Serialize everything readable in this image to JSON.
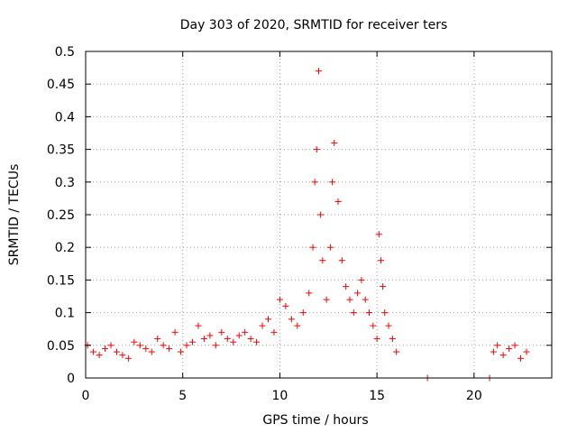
{
  "chart_data": {
    "type": "scatter",
    "title": "Day 303 of 2020, SRMTID for receiver ters",
    "xlabel": "GPS time / hours",
    "ylabel": "SRMTID / TECUs",
    "xlim": [
      0,
      24
    ],
    "ylim": [
      0,
      0.5
    ],
    "xticks": [
      0,
      5,
      10,
      15,
      20
    ],
    "xtick_labels": [
      "0",
      "5",
      "10",
      "15",
      "20"
    ],
    "yticks": [
      0,
      0.05,
      0.1,
      0.15,
      0.2,
      0.25,
      0.3,
      0.35,
      0.4,
      0.45,
      0.5
    ],
    "ytick_labels": [
      "0",
      "0.05",
      "0.1",
      "0.15",
      "0.2",
      "0.25",
      "0.3",
      "0.35",
      "0.4",
      "0.45",
      "0.5"
    ],
    "grid": true,
    "marker": "+",
    "series": [
      {
        "name": "SRMTID",
        "color": "#ff0000",
        "x": [
          0.1,
          0.4,
          0.7,
          1.0,
          1.3,
          1.6,
          1.9,
          2.2,
          2.5,
          2.8,
          3.1,
          3.4,
          3.7,
          4.0,
          4.3,
          4.6,
          4.9,
          5.2,
          5.5,
          5.8,
          6.1,
          6.4,
          6.7,
          7.0,
          7.3,
          7.6,
          7.9,
          8.2,
          8.5,
          8.8,
          9.1,
          9.4,
          9.7,
          10.0,
          10.3,
          10.6,
          10.9,
          11.2,
          11.5,
          11.7,
          11.8,
          11.9,
          12.0,
          12.1,
          12.2,
          12.4,
          12.6,
          12.7,
          12.8,
          13.0,
          13.2,
          13.4,
          13.6,
          13.8,
          14.0,
          14.2,
          14.4,
          14.6,
          14.8,
          15.0,
          15.1,
          15.2,
          15.3,
          15.4,
          15.6,
          15.8,
          16.0,
          17.6,
          20.8,
          21.0,
          21.2,
          21.5,
          21.8,
          22.1,
          22.4,
          22.7
        ],
        "y": [
          0.05,
          0.04,
          0.035,
          0.045,
          0.05,
          0.04,
          0.035,
          0.03,
          0.055,
          0.05,
          0.045,
          0.04,
          0.06,
          0.05,
          0.045,
          0.07,
          0.04,
          0.05,
          0.055,
          0.08,
          0.06,
          0.065,
          0.05,
          0.07,
          0.06,
          0.055,
          0.065,
          0.07,
          0.06,
          0.055,
          0.08,
          0.09,
          0.07,
          0.12,
          0.11,
          0.09,
          0.08,
          0.1,
          0.13,
          0.2,
          0.3,
          0.35,
          0.47,
          0.25,
          0.18,
          0.12,
          0.2,
          0.3,
          0.36,
          0.27,
          0.18,
          0.14,
          0.12,
          0.1,
          0.13,
          0.15,
          0.12,
          0.1,
          0.08,
          0.06,
          0.22,
          0.18,
          0.14,
          0.1,
          0.08,
          0.06,
          0.04,
          0.0,
          0.0,
          0.04,
          0.05,
          0.035,
          0.045,
          0.05,
          0.03,
          0.04
        ]
      }
    ]
  }
}
